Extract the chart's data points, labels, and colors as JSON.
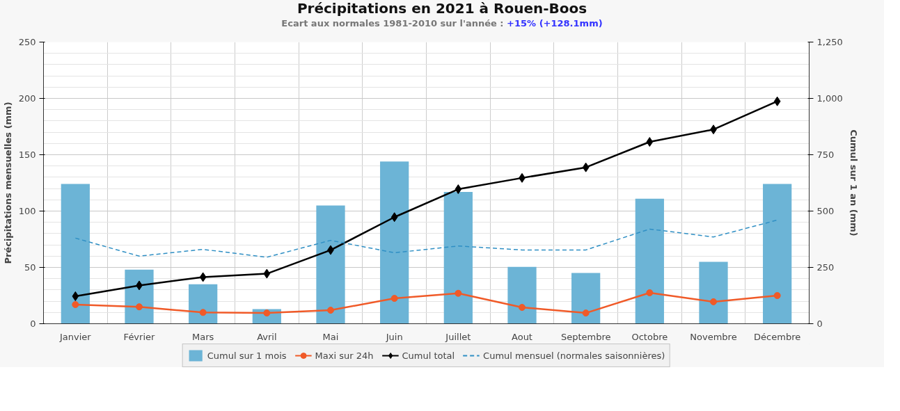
{
  "chart_data": {
    "type": "bar",
    "title": "Précipitations en 2021 à Rouen-Boos",
    "subtitle": "Ecart aux normales 1981-2010 sur l'année :",
    "annotations": [
      "+15% (+128.1mm)"
    ],
    "ylabel": "Précipitations mensuelles (mm)",
    "y2label": "Cumul sur 1 an (mm)",
    "categories": [
      "Janvier",
      "Février",
      "Mars",
      "Avril",
      "Mai",
      "Juin",
      "Juillet",
      "Aout",
      "Septembre",
      "Octobre",
      "Novembre",
      "Décembre"
    ],
    "ylim": [
      0,
      250
    ],
    "yticks": [
      0,
      50,
      100,
      150,
      200,
      250
    ],
    "y2lim": [
      0,
      1250
    ],
    "y2ticks": [
      0,
      {
        "value": 250,
        "label": "250"
      },
      {
        "value": 500,
        "label": "500"
      },
      {
        "value": 750,
        "label": "750"
      },
      {
        "value": 1000,
        "label": "1,000"
      },
      {
        "value": 1250,
        "label": "1,250"
      }
    ],
    "grid": true,
    "legend": "bottom",
    "series": [
      {
        "name": "Cumul sur 1 mois",
        "color": "#6cb4d6",
        "values": [
          124,
          48,
          35,
          13,
          105,
          144,
          117,
          50.5,
          45,
          111,
          55,
          124
        ]
      },
      {
        "name": "Maxi sur 24h",
        "type": "line",
        "marker": "circle",
        "color": "#f05a28",
        "values": [
          17,
          15,
          10,
          9.5,
          12,
          22.5,
          27,
          14.5,
          9.5,
          27.5,
          19.5,
          25
        ]
      },
      {
        "name": "Cumul total",
        "type": "line",
        "marker": "diamond",
        "axis": "y2",
        "color": "#000000",
        "values": [
          122,
          170,
          207,
          222,
          327,
          473,
          597,
          647,
          694,
          807,
          862,
          987
        ]
      },
      {
        "name": "Cumul mensuel (normales saisonnières)",
        "type": "line",
        "marker": "none",
        "line_style": "dashed",
        "color": "#2f8fc4",
        "values": [
          76,
          60,
          66,
          59,
          74,
          63,
          69,
          65.5,
          65.5,
          84,
          77,
          92
        ]
      }
    ]
  }
}
